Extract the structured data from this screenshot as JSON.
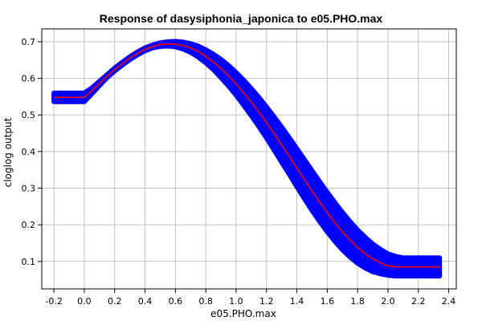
{
  "chart_data": {
    "type": "line",
    "title": "Response of dasysiphonia_japonica to e05.PHO.max",
    "xlabel": "e05.PHO.max",
    "ylabel": "cloglog output",
    "xlim": [
      -0.28,
      2.45
    ],
    "ylim": [
      0.025,
      0.735
    ],
    "xticks": [
      -0.2,
      0.0,
      0.2,
      0.4,
      0.6,
      0.8,
      1.0,
      1.2,
      1.4,
      1.6,
      1.8,
      2.0,
      2.2,
      2.4
    ],
    "xtick_labels": [
      "-0.2",
      "0.0",
      "0.2",
      "0.4",
      "0.6",
      "0.8",
      "1.0",
      "1.2",
      "1.4",
      "1.6",
      "1.8",
      "2.0",
      "2.2",
      "2.4"
    ],
    "yticks": [
      0.1,
      0.2,
      0.3,
      0.4,
      0.5,
      0.6,
      0.7
    ],
    "ytick_labels": [
      "0.1",
      "0.2",
      "0.3",
      "0.4",
      "0.5",
      "0.6",
      "0.7"
    ],
    "grid": true,
    "colors": {
      "mean": "#ff0000",
      "band": "#0000ff",
      "grid": "#c0c0c0",
      "axis": "#000000"
    },
    "series": [
      {
        "x": [
          -0.2,
          0.0,
          0.05,
          0.1,
          0.15,
          0.2,
          0.25,
          0.3,
          0.35,
          0.4,
          0.45,
          0.5,
          0.55,
          0.6,
          0.65,
          0.7,
          0.75,
          0.8,
          0.85,
          0.9,
          0.95,
          1.0,
          1.05,
          1.1,
          1.15,
          1.2,
          1.25,
          1.3,
          1.35,
          1.4,
          1.45,
          1.5,
          1.55,
          1.6,
          1.65,
          1.7,
          1.75,
          1.8,
          1.85,
          1.9,
          1.95,
          2.0,
          2.05,
          2.1,
          2.14,
          2.34
        ],
        "y": [
          0.548,
          0.548,
          0.566,
          0.586,
          0.606,
          0.624,
          0.64,
          0.655,
          0.668,
          0.679,
          0.687,
          0.692,
          0.694,
          0.693,
          0.69,
          0.683,
          0.673,
          0.66,
          0.645,
          0.627,
          0.607,
          0.585,
          0.56,
          0.535,
          0.508,
          0.479,
          0.449,
          0.418,
          0.387,
          0.355,
          0.323,
          0.292,
          0.262,
          0.233,
          0.206,
          0.181,
          0.158,
          0.138,
          0.121,
          0.107,
          0.096,
          0.088,
          0.085,
          0.085,
          0.085,
          0.085
        ],
        "upper": [
          0.56,
          0.56,
          0.574,
          0.592,
          0.61,
          0.628,
          0.644,
          0.659,
          0.672,
          0.683,
          0.691,
          0.697,
          0.7,
          0.701,
          0.699,
          0.695,
          0.688,
          0.678,
          0.666,
          0.652,
          0.635,
          0.616,
          0.595,
          0.572,
          0.548,
          0.522,
          0.495,
          0.467,
          0.438,
          0.408,
          0.378,
          0.348,
          0.318,
          0.289,
          0.261,
          0.234,
          0.209,
          0.186,
          0.166,
          0.148,
          0.133,
          0.121,
          0.114,
          0.11,
          0.11,
          0.11
        ],
        "lower": [
          0.536,
          0.536,
          0.558,
          0.58,
          0.602,
          0.62,
          0.636,
          0.651,
          0.664,
          0.675,
          0.683,
          0.687,
          0.688,
          0.686,
          0.68,
          0.671,
          0.658,
          0.642,
          0.624,
          0.602,
          0.579,
          0.554,
          0.526,
          0.498,
          0.468,
          0.437,
          0.404,
          0.371,
          0.338,
          0.304,
          0.271,
          0.239,
          0.209,
          0.181,
          0.155,
          0.132,
          0.112,
          0.095,
          0.082,
          0.072,
          0.066,
          0.062,
          0.06,
          0.06,
          0.06,
          0.06
        ]
      }
    ]
  }
}
